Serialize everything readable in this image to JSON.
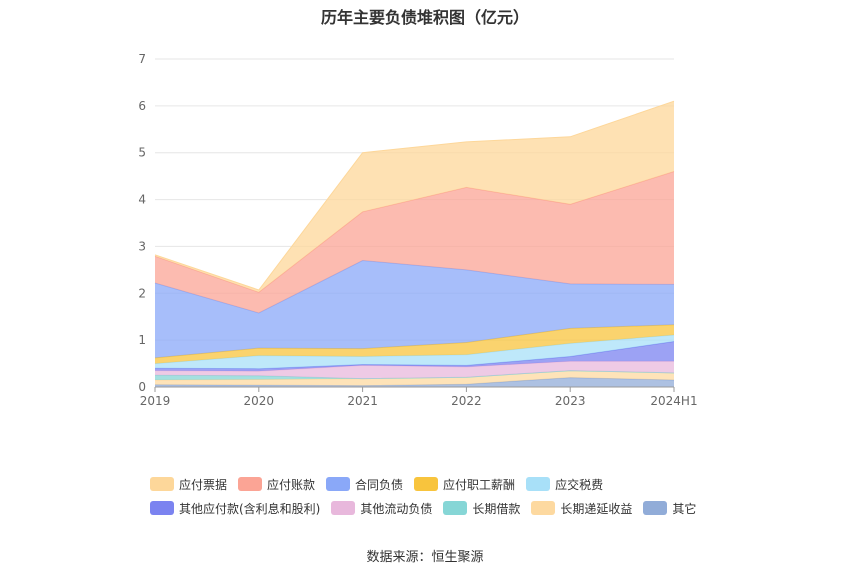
{
  "chart_data": {
    "type": "area",
    "stacked": true,
    "title": "历年主要负债堆积图（亿元）",
    "categories": [
      "2019",
      "2020",
      "2021",
      "2022",
      "2023",
      "2024H1"
    ],
    "ylim": [
      0,
      7
    ],
    "yticks": [
      "0",
      "1",
      "2",
      "3",
      "4",
      "5",
      "6",
      "7"
    ],
    "grid": true,
    "legend_position": "bottom",
    "series": [
      {
        "name": "其它",
        "color": "#91acd8",
        "values": [
          0.05,
          0.04,
          0.03,
          0.06,
          0.2,
          0.15
        ]
      },
      {
        "name": "长期递延收益",
        "color": "#fdd9a0",
        "values": [
          0.1,
          0.12,
          0.15,
          0.15,
          0.15,
          0.15
        ]
      },
      {
        "name": "长期借款",
        "color": "#86d6d6",
        "values": [
          0.1,
          0.08,
          0.0,
          0.0,
          0.0,
          0.0
        ]
      },
      {
        "name": "其他流动负债",
        "color": "#e8b8dc",
        "values": [
          0.1,
          0.1,
          0.28,
          0.22,
          0.2,
          0.25
        ]
      },
      {
        "name": "其他应付款(含利息和股利)",
        "color": "#7b83f0",
        "values": [
          0.05,
          0.05,
          0.02,
          0.03,
          0.1,
          0.42
        ]
      },
      {
        "name": "应交税费",
        "color": "#a8e0f8",
        "values": [
          0.1,
          0.28,
          0.17,
          0.23,
          0.28,
          0.14
        ]
      },
      {
        "name": "应付职工薪酬",
        "color": "#f8c43d",
        "values": [
          0.12,
          0.16,
          0.17,
          0.26,
          0.32,
          0.22
        ]
      },
      {
        "name": "合同负债",
        "color": "#8aa8f8",
        "values": [
          1.6,
          0.75,
          1.88,
          1.55,
          0.95,
          0.86
        ]
      },
      {
        "name": "应付账款",
        "color": "#fba495",
        "values": [
          0.57,
          0.44,
          1.04,
          1.76,
          1.7,
          2.41
        ]
      },
      {
        "name": "应付票据",
        "color": "#fdd79a",
        "values": [
          0.03,
          0.05,
          1.26,
          0.97,
          1.44,
          1.5
        ]
      }
    ],
    "legend": [
      [
        "应付票据",
        "应付账款",
        "合同负债",
        "应付职工薪酬",
        "应交税费"
      ],
      [
        "其他应付款(含利息和股利)",
        "其他流动负债",
        "长期借款",
        "长期递延收益",
        "其它"
      ]
    ]
  },
  "source_text": "数据来源：恒生聚源"
}
